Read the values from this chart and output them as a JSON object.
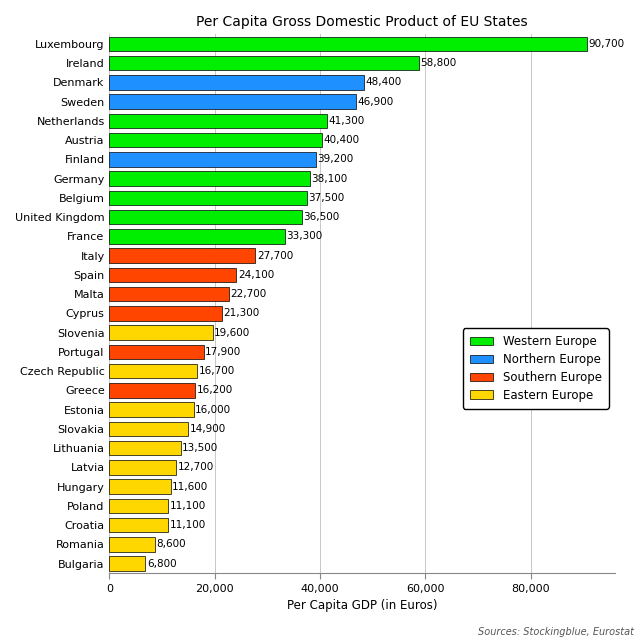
{
  "title": "Per Capita Gross Domestic Product of EU States",
  "xlabel": "Per Capita GDP (in Euros)",
  "source_text": "Sources: Stockingblue, Eurostat",
  "countries": [
    "Luxembourg",
    "Ireland",
    "Denmark",
    "Sweden",
    "Netherlands",
    "Austria",
    "Finland",
    "Germany",
    "Belgium",
    "United Kingdom",
    "France",
    "Italy",
    "Spain",
    "Malta",
    "Cyprus",
    "Slovenia",
    "Portugal",
    "Czech Republic",
    "Greece",
    "Estonia",
    "Slovakia",
    "Lithuania",
    "Latvia",
    "Hungary",
    "Poland",
    "Croatia",
    "Romania",
    "Bulgaria"
  ],
  "values": [
    90700,
    58800,
    48400,
    46900,
    41300,
    40400,
    39200,
    38100,
    37500,
    36500,
    33300,
    27700,
    24100,
    22700,
    21300,
    19600,
    17900,
    16700,
    16200,
    16000,
    14900,
    13500,
    12700,
    11600,
    11100,
    11100,
    8600,
    6800
  ],
  "regions": [
    "Western Europe",
    "Western Europe",
    "Northern Europe",
    "Northern Europe",
    "Western Europe",
    "Western Europe",
    "Northern Europe",
    "Western Europe",
    "Western Europe",
    "Western Europe",
    "Western Europe",
    "Southern Europe",
    "Southern Europe",
    "Southern Europe",
    "Southern Europe",
    "Eastern Europe",
    "Southern Europe",
    "Eastern Europe",
    "Southern Europe",
    "Eastern Europe",
    "Eastern Europe",
    "Eastern Europe",
    "Eastern Europe",
    "Eastern Europe",
    "Eastern Europe",
    "Eastern Europe",
    "Eastern Europe",
    "Eastern Europe"
  ],
  "region_colors": {
    "Western Europe": "#00EE00",
    "Northern Europe": "#1E90FF",
    "Southern Europe": "#FF4500",
    "Eastern Europe": "#FFD700"
  },
  "bar_edge_color": "#000000",
  "background_color": "#FFFFFF",
  "grid_color": "#C8C8C8",
  "xlim": [
    0,
    96000
  ],
  "xticks": [
    0,
    20000,
    40000,
    60000,
    80000
  ],
  "xtick_labels": [
    "0",
    "20,000",
    "40,000",
    "60,000",
    "80,000"
  ],
  "legend_entries": [
    "Western Europe",
    "Northern Europe",
    "Southern Europe",
    "Eastern Europe"
  ],
  "title_fontsize": 10,
  "label_fontsize": 8.5,
  "tick_fontsize": 8,
  "annotation_fontsize": 7.5,
  "source_fontsize": 7
}
